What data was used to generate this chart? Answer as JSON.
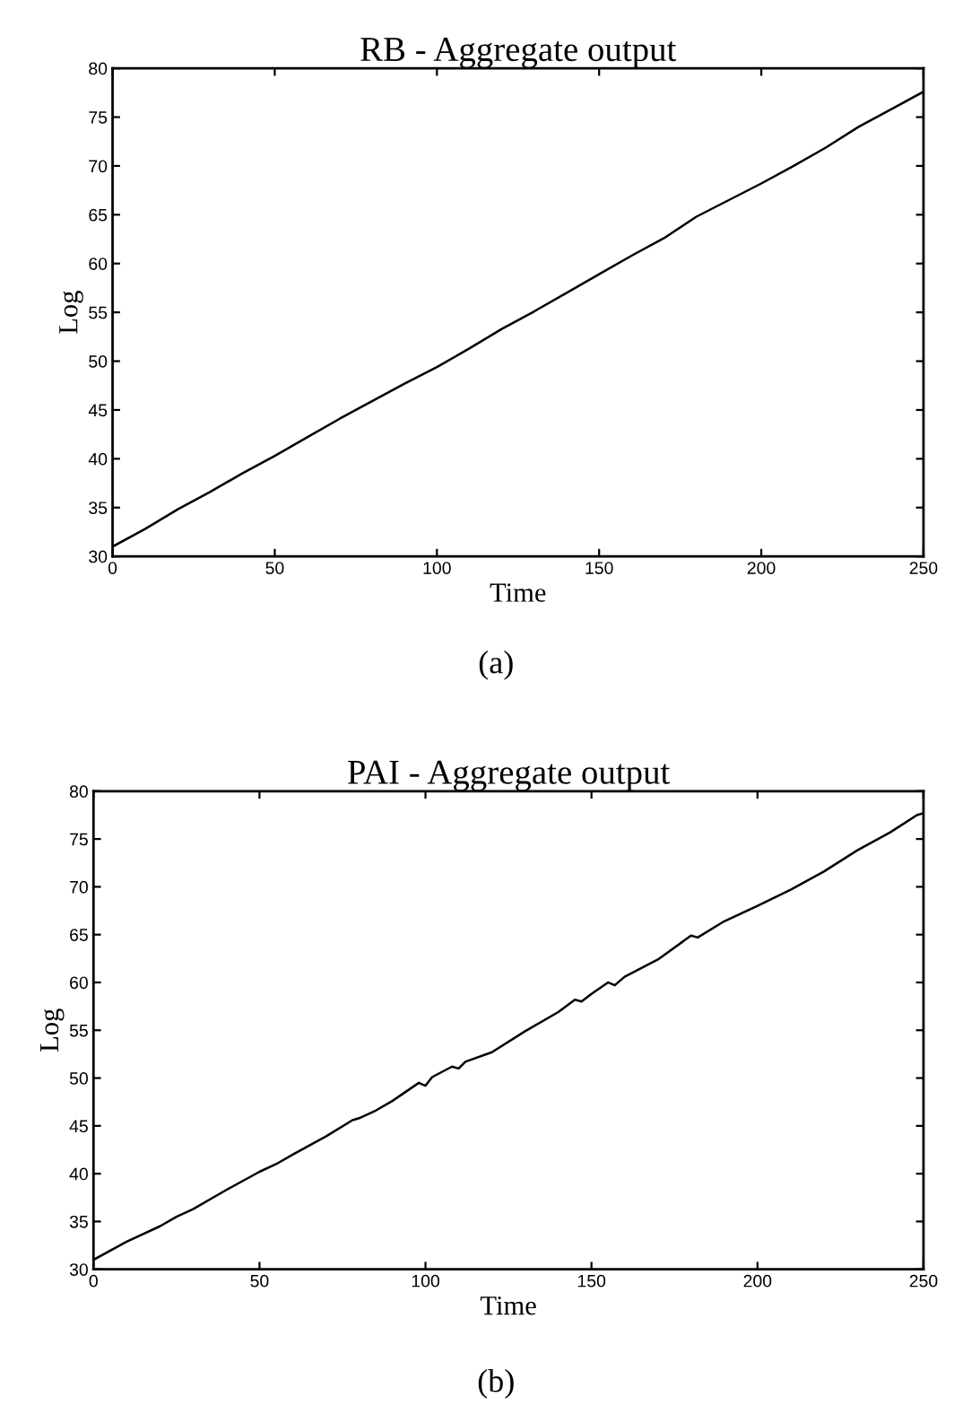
{
  "chart_data": [
    {
      "type": "line",
      "title": "RB - Aggregate output",
      "xlabel": "Time",
      "ylabel": "Log",
      "annotations": [
        "(a)"
      ],
      "xlim": [
        0,
        250
      ],
      "ylim": [
        30,
        80
      ],
      "xticks": [
        0,
        50,
        100,
        150,
        200,
        250
      ],
      "yticks": [
        30,
        35,
        40,
        45,
        50,
        55,
        60,
        65,
        70,
        75,
        80
      ],
      "series": [
        {
          "color": "#000000",
          "x": [
            0,
            10,
            20,
            30,
            40,
            50,
            60,
            70,
            80,
            90,
            100,
            110,
            120,
            130,
            140,
            150,
            160,
            170,
            180,
            190,
            200,
            210,
            220,
            230,
            240,
            250
          ],
          "values": [
            31.0,
            32.8,
            34.8,
            36.6,
            38.5,
            40.3,
            42.2,
            44.1,
            45.9,
            47.7,
            49.4,
            51.3,
            53.3,
            55.1,
            57.0,
            58.9,
            60.8,
            62.6,
            64.8,
            66.5,
            68.2,
            70.0,
            71.9,
            74.0,
            75.8,
            77.6
          ]
        }
      ]
    },
    {
      "type": "line",
      "title": "PAI - Aggregate output",
      "xlabel": "Time",
      "ylabel": "Log",
      "annotations": [
        "(b)"
      ],
      "xlim": [
        0,
        250
      ],
      "ylim": [
        30,
        80
      ],
      "xticks": [
        0,
        50,
        100,
        150,
        200,
        250
      ],
      "yticks": [
        30,
        35,
        40,
        45,
        50,
        55,
        60,
        65,
        70,
        75,
        80
      ],
      "series": [
        {
          "color": "#000000",
          "x": [
            0,
            10,
            20,
            25,
            30,
            40,
            50,
            55,
            60,
            70,
            78,
            80,
            85,
            90,
            98,
            100,
            102,
            108,
            110,
            112,
            120,
            130,
            140,
            145,
            147,
            150,
            155,
            157,
            160,
            170,
            180,
            182,
            190,
            200,
            210,
            220,
            230,
            240,
            248,
            250
          ],
          "values": [
            31.0,
            32.9,
            34.5,
            35.5,
            36.3,
            38.3,
            40.2,
            41.0,
            42.0,
            43.9,
            45.6,
            45.8,
            46.6,
            47.6,
            49.5,
            49.2,
            50.1,
            51.2,
            51.0,
            51.7,
            52.7,
            54.9,
            56.9,
            58.2,
            58.0,
            58.8,
            60.0,
            59.7,
            60.6,
            62.4,
            64.9,
            64.7,
            66.4,
            68.0,
            69.7,
            71.6,
            73.8,
            75.7,
            77.5,
            77.7
          ]
        }
      ]
    }
  ]
}
